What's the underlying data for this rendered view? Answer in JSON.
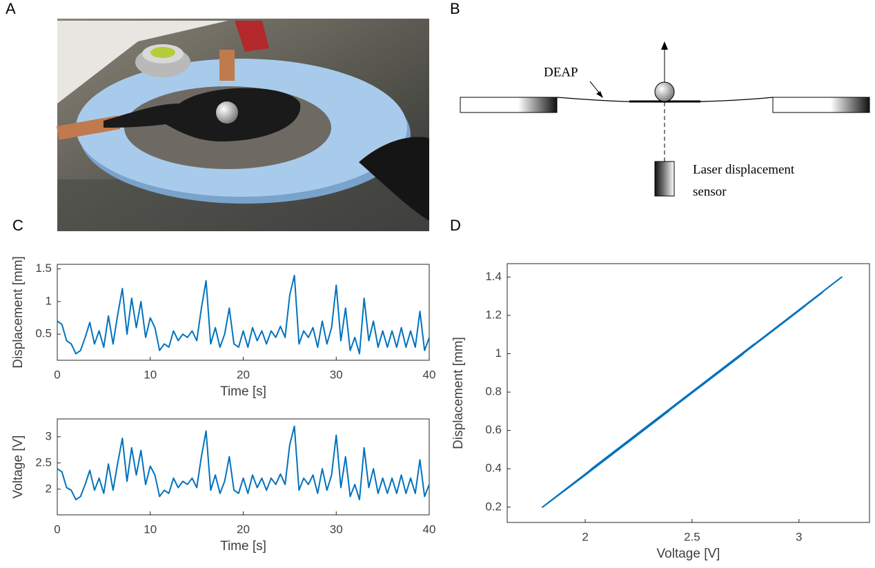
{
  "panels": [
    "A",
    "B",
    "C",
    "D"
  ],
  "diagram": {
    "membrane_label": "DEAP",
    "sensor_label": [
      "Laser displacement",
      "sensor"
    ]
  },
  "chart_data": [
    {
      "type": "line",
      "xlabel": "Time [s]",
      "ylabel": "Displacement [mm]",
      "color": "#0072bd",
      "xlim": [
        0,
        40
      ],
      "xticks": [
        0,
        10,
        20,
        30,
        40
      ],
      "ylim": [
        0.1,
        1.57
      ],
      "yticks": [
        0.5,
        1,
        1.5
      ],
      "x": [
        0,
        0.5,
        1,
        1.5,
        2,
        2.5,
        3,
        3.5,
        4,
        4.5,
        5,
        5.5,
        6,
        6.5,
        7,
        7.5,
        8,
        8.5,
        9,
        9.5,
        10,
        10.5,
        11,
        11.5,
        12,
        12.5,
        13,
        13.5,
        14,
        14.5,
        15,
        15.5,
        16,
        16.5,
        17,
        17.5,
        18,
        18.5,
        19,
        19.5,
        20,
        20.5,
        21,
        21.5,
        22,
        22.5,
        23,
        23.5,
        24,
        24.5,
        25,
        25.5,
        26,
        26.5,
        27,
        27.5,
        28,
        28.5,
        29,
        29.5,
        30,
        30.5,
        31,
        31.5,
        32,
        32.5,
        33,
        33.5,
        34,
        34.5,
        35,
        35.5,
        36,
        36.5,
        37,
        37.5,
        38,
        38.5,
        39,
        39.5,
        40
      ],
      "values": [
        0.7,
        0.65,
        0.4,
        0.35,
        0.2,
        0.25,
        0.45,
        0.68,
        0.35,
        0.55,
        0.3,
        0.78,
        0.35,
        0.8,
        1.2,
        0.5,
        1.05,
        0.6,
        1.0,
        0.45,
        0.75,
        0.6,
        0.25,
        0.35,
        0.3,
        0.55,
        0.4,
        0.5,
        0.45,
        0.55,
        0.4,
        0.9,
        1.32,
        0.35,
        0.6,
        0.3,
        0.5,
        0.9,
        0.35,
        0.3,
        0.55,
        0.3,
        0.6,
        0.4,
        0.55,
        0.35,
        0.55,
        0.45,
        0.62,
        0.45,
        1.1,
        1.4,
        0.35,
        0.55,
        0.45,
        0.6,
        0.3,
        0.7,
        0.35,
        0.6,
        1.25,
        0.4,
        0.9,
        0.25,
        0.45,
        0.2,
        1.05,
        0.4,
        0.7,
        0.3,
        0.55,
        0.3,
        0.55,
        0.3,
        0.6,
        0.3,
        0.55,
        0.3,
        0.85,
        0.25,
        0.45
      ]
    },
    {
      "type": "line",
      "xlabel": "Time [s]",
      "ylabel": "Voltage [V]",
      "color": "#0072bd",
      "xlim": [
        0,
        40
      ],
      "xticks": [
        0,
        10,
        20,
        30,
        40
      ],
      "ylim": [
        1.51,
        3.34
      ],
      "yticks": [
        2,
        2.5,
        3
      ],
      "x": [
        0,
        0.5,
        1,
        1.5,
        2,
        2.5,
        3,
        3.5,
        4,
        4.5,
        5,
        5.5,
        6,
        6.5,
        7,
        7.5,
        8,
        8.5,
        9,
        9.5,
        10,
        10.5,
        11,
        11.5,
        12,
        12.5,
        13,
        13.5,
        14,
        14.5,
        15,
        15.5,
        16,
        16.5,
        17,
        17.5,
        18,
        18.5,
        19,
        19.5,
        20,
        20.5,
        21,
        21.5,
        22,
        22.5,
        23,
        23.5,
        24,
        24.5,
        25,
        25.5,
        26,
        26.5,
        27,
        27.5,
        28,
        28.5,
        29,
        29.5,
        30,
        30.5,
        31,
        31.5,
        32,
        32.5,
        33,
        33.5,
        34,
        34.5,
        35,
        35.5,
        36,
        36.5,
        37,
        37.5,
        38,
        38.5,
        39,
        39.5,
        40
      ],
      "values": [
        2.39,
        2.33,
        2.03,
        1.98,
        1.8,
        1.86,
        2.09,
        2.36,
        1.98,
        2.21,
        1.92,
        2.48,
        1.98,
        2.5,
        2.97,
        2.15,
        2.79,
        2.27,
        2.74,
        2.09,
        2.44,
        2.27,
        1.86,
        1.98,
        1.92,
        2.21,
        2.03,
        2.15,
        2.09,
        2.21,
        2.03,
        2.62,
        3.11,
        1.98,
        2.27,
        1.92,
        2.15,
        2.62,
        1.98,
        1.92,
        2.21,
        1.92,
        2.27,
        2.03,
        2.21,
        1.98,
        2.21,
        2.09,
        2.29,
        2.09,
        2.85,
        3.2,
        1.98,
        2.21,
        2.09,
        2.27,
        1.92,
        2.39,
        1.98,
        2.27,
        3.03,
        2.03,
        2.62,
        1.86,
        2.09,
        1.8,
        2.79,
        2.03,
        2.39,
        1.92,
        2.21,
        1.92,
        2.21,
        1.92,
        2.27,
        1.92,
        2.21,
        1.92,
        2.56,
        1.86,
        2.09
      ]
    },
    {
      "type": "line",
      "xlabel": "Voltage [V]",
      "ylabel": "Displacement [mm]",
      "color": "#0072bd",
      "xlim": [
        1.635,
        3.33
      ],
      "xticks": [
        2,
        2.5,
        3
      ],
      "ylim": [
        0.12,
        1.47
      ],
      "yticks": [
        0.2,
        0.4,
        0.6,
        0.8,
        1,
        1.2,
        1.4
      ],
      "x": [
        2.39,
        2.33,
        2.03,
        1.98,
        1.8,
        1.86,
        2.09,
        2.36,
        1.98,
        2.21,
        1.92,
        2.48,
        1.98,
        2.5,
        2.97,
        2.15,
        2.79,
        2.27,
        2.74,
        2.09,
        2.44,
        2.27,
        1.86,
        1.98,
        1.92,
        2.21,
        2.03,
        2.15,
        2.09,
        2.21,
        2.03,
        2.62,
        3.11,
        1.98,
        2.27,
        1.92,
        2.15,
        2.62,
        1.98,
        1.92,
        2.21,
        1.92,
        2.27,
        2.03,
        2.21,
        1.98,
        2.21,
        2.09,
        2.29,
        2.09,
        2.85,
        3.2,
        1.98,
        2.21,
        2.09,
        2.27,
        1.92,
        2.39,
        1.98,
        2.27,
        3.03,
        2.03,
        2.62,
        1.86,
        2.09,
        1.8,
        2.79,
        2.03,
        2.39,
        1.92,
        2.21,
        1.92,
        2.21,
        1.92,
        2.27,
        1.92,
        2.21,
        1.92,
        2.56,
        1.86,
        2.09
      ],
      "values": [
        0.7,
        0.65,
        0.4,
        0.35,
        0.2,
        0.25,
        0.45,
        0.68,
        0.35,
        0.55,
        0.3,
        0.78,
        0.35,
        0.8,
        1.2,
        0.5,
        1.05,
        0.6,
        1.0,
        0.45,
        0.75,
        0.6,
        0.25,
        0.35,
        0.3,
        0.55,
        0.4,
        0.5,
        0.45,
        0.55,
        0.4,
        0.9,
        1.32,
        0.35,
        0.6,
        0.3,
        0.5,
        0.9,
        0.35,
        0.3,
        0.55,
        0.3,
        0.6,
        0.4,
        0.55,
        0.35,
        0.55,
        0.45,
        0.62,
        0.45,
        1.1,
        1.4,
        0.35,
        0.55,
        0.45,
        0.6,
        0.3,
        0.7,
        0.35,
        0.6,
        1.25,
        0.4,
        0.9,
        0.25,
        0.45,
        0.2,
        1.05,
        0.4,
        0.7,
        0.3,
        0.55,
        0.3,
        0.55,
        0.3,
        0.6,
        0.3,
        0.55,
        0.3,
        0.85,
        0.25,
        0.45
      ]
    }
  ]
}
